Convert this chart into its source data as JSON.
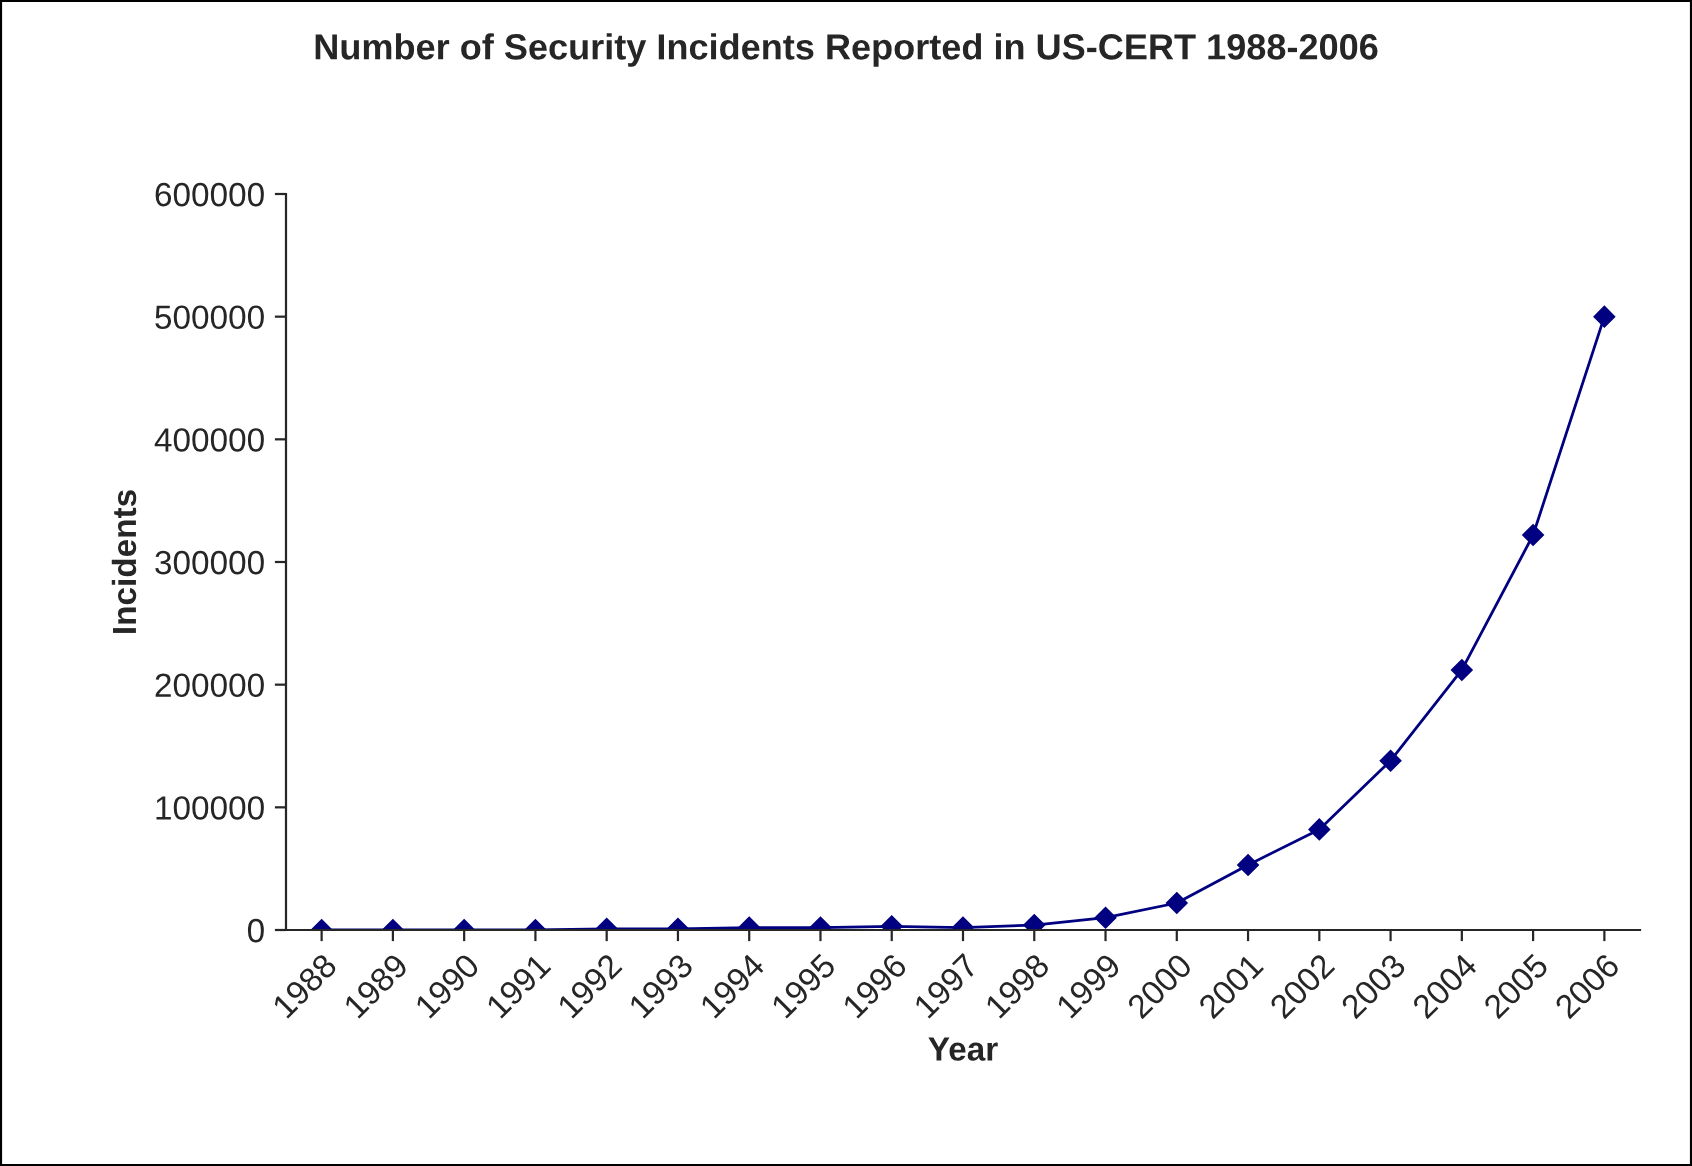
{
  "chart_data": {
    "type": "line",
    "title": "Number of Security Incidents Reported in US-CERT 1988-2006",
    "xlabel": "Year",
    "ylabel": "Incidents",
    "categories": [
      "1988",
      "1989",
      "1990",
      "1991",
      "1992",
      "1993",
      "1994",
      "1995",
      "1996",
      "1997",
      "1998",
      "1999",
      "2000",
      "2001",
      "2002",
      "2003",
      "2004",
      "2005",
      "2006"
    ],
    "series": [
      {
        "color": "#000080",
        "values": [
          0,
          0,
          0,
          0,
          1000,
          1000,
          2000,
          2000,
          3000,
          2000,
          4000,
          10000,
          22000,
          53000,
          82000,
          138000,
          212000,
          322000,
          500000
        ]
      }
    ],
    "ylim": [
      0,
      600000
    ],
    "yticks": [
      0,
      100000,
      200000,
      300000,
      400000,
      500000,
      600000
    ],
    "marker": "diamond",
    "line_style": "solid"
  }
}
